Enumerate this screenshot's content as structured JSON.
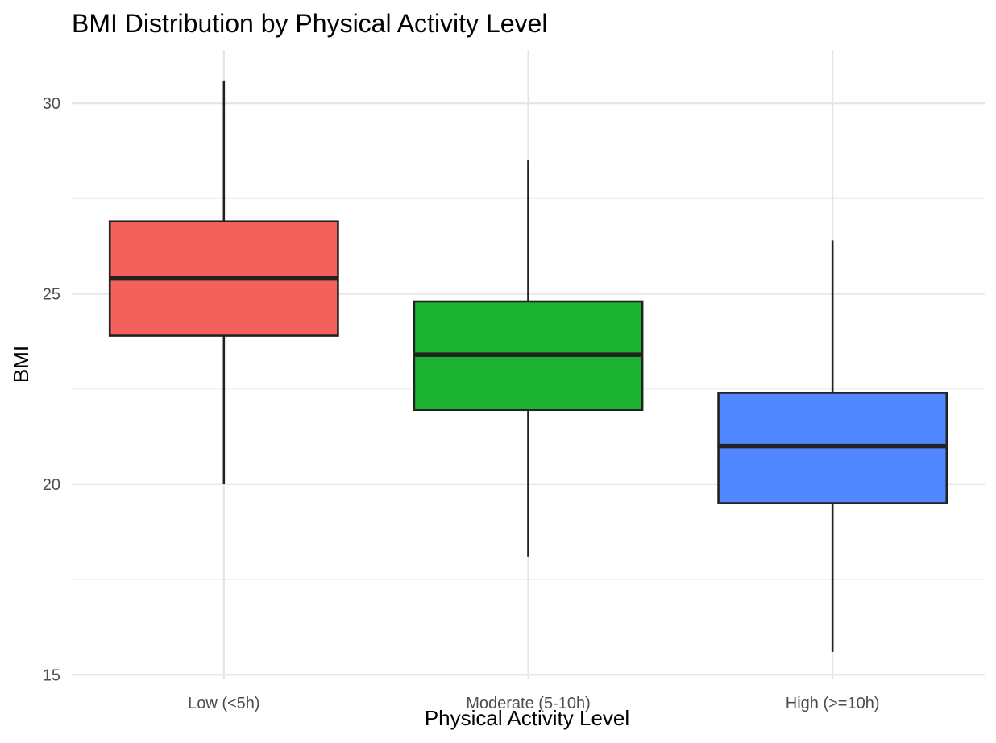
{
  "chart_data": {
    "type": "boxplot",
    "title": "BMI Distribution by Physical Activity Level",
    "xlabel": "Physical Activity Level",
    "ylabel": "BMI",
    "ylim": [
      14.9,
      31.4
    ],
    "yticks": [
      15,
      20,
      25,
      30
    ],
    "yminor": [
      17.5,
      22.5,
      27.5
    ],
    "grid": true,
    "legend": "none",
    "categories": [
      "Low (<5h)",
      "Moderate (5-10h)",
      "High (>=10h)"
    ],
    "boxes": [
      {
        "category": "Low (<5h)",
        "whisker_low": 20.0,
        "q1": 23.9,
        "median": 25.4,
        "q3": 26.9,
        "whisker_high": 30.6,
        "color": "#F3615D"
      },
      {
        "category": "Moderate (5-10h)",
        "whisker_low": 18.1,
        "q1": 21.95,
        "median": 23.4,
        "q3": 24.8,
        "whisker_high": 28.5,
        "color": "#1AB22F"
      },
      {
        "category": "High (>=10h)",
        "whisker_low": 15.6,
        "q1": 19.5,
        "median": 21.0,
        "q3": 22.4,
        "whisker_high": 26.4,
        "color": "#5087FF"
      }
    ]
  }
}
